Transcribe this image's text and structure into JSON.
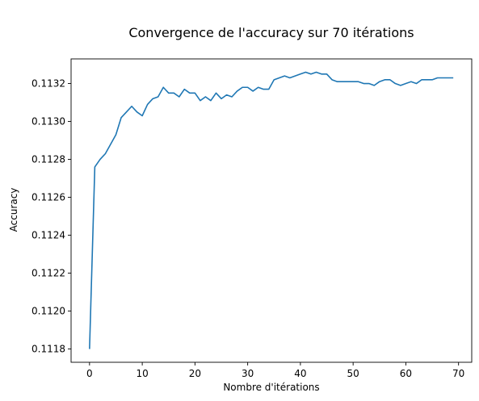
{
  "chart_data": {
    "type": "line",
    "title": "Convergence de l'accuracy sur 70 itérations",
    "xlabel": "Nombre d'itérations",
    "ylabel": "Accuracy",
    "xlim": [
      -3.5,
      72.5
    ],
    "ylim": [
      0.11173,
      0.11333
    ],
    "xticks": [
      0,
      10,
      20,
      30,
      40,
      50,
      60,
      70
    ],
    "yticks": [
      0.1118,
      0.112,
      0.1122,
      0.1124,
      0.1126,
      0.1128,
      0.113,
      0.1132
    ],
    "ytick_labels": [
      "0.1118",
      "0.1120",
      "0.1122",
      "0.1124",
      "0.1126",
      "0.1128",
      "0.1130",
      "0.1132"
    ],
    "grid": false,
    "series": [
      {
        "color": "#1f77b4",
        "x": [
          0,
          1,
          2,
          3,
          4,
          5,
          6,
          7,
          8,
          9,
          10,
          11,
          12,
          13,
          14,
          15,
          16,
          17,
          18,
          19,
          20,
          21,
          22,
          23,
          24,
          25,
          26,
          27,
          28,
          29,
          30,
          31,
          32,
          33,
          34,
          35,
          36,
          37,
          38,
          39,
          40,
          41,
          42,
          43,
          44,
          45,
          46,
          47,
          48,
          49,
          50,
          51,
          52,
          53,
          54,
          55,
          56,
          57,
          58,
          59,
          60,
          61,
          62,
          63,
          64,
          65,
          66,
          67,
          68,
          69
        ],
        "values": [
          0.1118,
          0.11276,
          0.1128,
          0.11283,
          0.11288,
          0.11293,
          0.11302,
          0.11305,
          0.11308,
          0.11305,
          0.11303,
          0.11309,
          0.11312,
          0.11313,
          0.11318,
          0.11315,
          0.11315,
          0.11313,
          0.11317,
          0.11315,
          0.11315,
          0.11311,
          0.11313,
          0.11311,
          0.11315,
          0.11312,
          0.11314,
          0.11313,
          0.11316,
          0.11318,
          0.11318,
          0.11316,
          0.11318,
          0.11317,
          0.11317,
          0.11322,
          0.11323,
          0.11324,
          0.11323,
          0.11324,
          0.11325,
          0.11326,
          0.11325,
          0.11326,
          0.11325,
          0.11325,
          0.11322,
          0.11321,
          0.11321,
          0.11321,
          0.11321,
          0.11321,
          0.1132,
          0.1132,
          0.11319,
          0.11321,
          0.11322,
          0.11322,
          0.1132,
          0.11319,
          0.1132,
          0.11321,
          0.1132,
          0.11322,
          0.11322,
          0.11322,
          0.11323,
          0.11323,
          0.11323,
          0.11323
        ]
      }
    ]
  }
}
